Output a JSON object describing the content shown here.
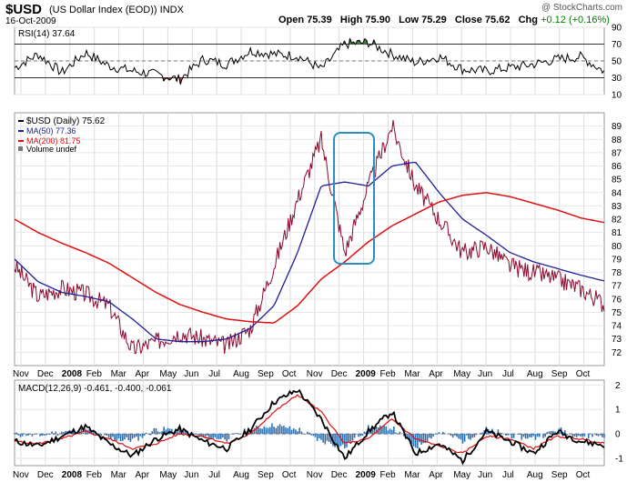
{
  "header": {
    "symbol": "$USD",
    "name": "(US Dollar Index (EOD))",
    "exchange": "INDX",
    "date": "16-Oct-2009",
    "copyright": "@ StockCharts.com",
    "open_label": "Open",
    "open": "75.39",
    "high_label": "High",
    "high": "75.90",
    "low_label": "Low",
    "low": "75.29",
    "close_label": "Close",
    "close": "75.62",
    "chg_label": "Chg",
    "chg": "+0.12 (+0.16%)"
  },
  "colors": {
    "price": "#8b0a2e",
    "ma50": "#1f1f9a",
    "ma200": "#e01010",
    "rsi_line": "#000000",
    "rsi_fill": "#3c7a3c",
    "macd_line": "#000000",
    "signal_line": "#e01010",
    "histogram": "#2e6fb0",
    "highlight": "#2a8fc0"
  },
  "chart_data": [
    {
      "type": "line",
      "panel": "rsi",
      "title": "RSI(14) 37.64",
      "ylim": [
        10,
        90
      ],
      "y_ticks": [
        "90",
        "70",
        "50",
        "30",
        "10"
      ],
      "reference_levels": [
        70,
        50,
        30
      ],
      "x": [
        0,
        10,
        20,
        30,
        40,
        50,
        60,
        70,
        80,
        90,
        100,
        110,
        120,
        130,
        140,
        150,
        160,
        170,
        180,
        190,
        200,
        210,
        220,
        230,
        240,
        250
      ],
      "series": [
        {
          "name": "RSI(14)",
          "values": [
            42,
            58,
            36,
            60,
            44,
            38,
            34,
            28,
            52,
            46,
            62,
            58,
            56,
            40,
            70,
            72,
            58,
            48,
            55,
            40,
            38,
            42,
            46,
            52,
            55,
            37.64
          ]
        }
      ]
    },
    {
      "type": "line",
      "panel": "price",
      "legend": [
        "$USD (Daily) 75.62",
        "MA(50) 77.36",
        "MA(200) 81.75",
        "Volume undef"
      ],
      "ylim": [
        71,
        90
      ],
      "y_ticks": [
        "89",
        "88",
        "87",
        "86",
        "85",
        "84",
        "83",
        "82",
        "81",
        "80",
        "79",
        "78",
        "77",
        "76",
        "75",
        "74",
        "73",
        "72"
      ],
      "x_ticks": [
        "Nov",
        "Dec",
        "2008",
        "Feb",
        "Mar",
        "Apr",
        "May",
        "Jun",
        "Jul",
        "Aug",
        "Sep",
        "Oct",
        "Nov",
        "Dec",
        "2009",
        "Feb",
        "Mar",
        "Apr",
        "May",
        "Jun",
        "Jul",
        "Aug",
        "Sep",
        "Oct"
      ],
      "x": [
        0,
        10,
        20,
        30,
        40,
        50,
        60,
        70,
        80,
        90,
        100,
        110,
        120,
        130,
        140,
        150,
        160,
        170,
        180,
        190,
        200,
        210,
        220,
        230,
        240,
        250
      ],
      "series": [
        {
          "name": "$USD (Daily)",
          "values": [
            78.5,
            76.2,
            76.8,
            76.4,
            75.5,
            72.2,
            72.8,
            73.5,
            73.0,
            72.5,
            73.8,
            78.5,
            83.5,
            88.0,
            79.5,
            84.5,
            89.0,
            84.5,
            82.0,
            79.5,
            80.0,
            78.5,
            78.0,
            77.5,
            76.8,
            75.62
          ]
        },
        {
          "name": "MA(50)",
          "values": [
            79.0,
            77.3,
            76.5,
            76.2,
            75.8,
            74.5,
            73.0,
            72.8,
            72.8,
            73.0,
            73.8,
            75.5,
            79.5,
            84.5,
            84.8,
            84.5,
            86.0,
            86.3,
            84.0,
            82.0,
            80.8,
            79.5,
            78.8,
            78.3,
            77.8,
            77.36
          ]
        },
        {
          "name": "MA(200)",
          "values": [
            82.0,
            81.0,
            80.2,
            79.5,
            78.7,
            77.6,
            76.5,
            75.6,
            75.0,
            74.5,
            74.3,
            74.2,
            75.5,
            77.5,
            78.8,
            80.3,
            81.5,
            82.4,
            83.3,
            83.8,
            84.0,
            83.7,
            83.2,
            82.7,
            82.1,
            81.75
          ]
        }
      ],
      "annotation": "highlight box around the Nov 2008 - Jan 2009 peak and drop"
    },
    {
      "type": "line",
      "panel": "macd",
      "title": "MACD(12,26,9) -0.461, -0.400, -0.061",
      "ylim": [
        -1.3,
        2.2
      ],
      "y_ticks": [
        "2",
        "1",
        "0",
        "-1"
      ],
      "x": [
        0,
        10,
        20,
        30,
        40,
        50,
        60,
        70,
        80,
        90,
        100,
        110,
        120,
        130,
        140,
        150,
        160,
        170,
        180,
        190,
        200,
        210,
        220,
        230,
        240,
        250
      ],
      "series": [
        {
          "name": "MACD",
          "values": [
            -0.3,
            -0.5,
            -0.1,
            0.3,
            -0.4,
            -0.9,
            -0.2,
            0.2,
            -0.3,
            -0.6,
            0.2,
            1.3,
            1.8,
            0.6,
            -1.0,
            0.1,
            0.9,
            -0.8,
            -0.4,
            -1.1,
            0.1,
            -0.3,
            -0.8,
            0.1,
            -0.3,
            -0.461
          ]
        },
        {
          "name": "Signal",
          "values": [
            -0.3,
            -0.4,
            -0.2,
            0.1,
            -0.2,
            -0.6,
            -0.4,
            0.0,
            -0.1,
            -0.4,
            0.0,
            0.9,
            1.6,
            0.9,
            -0.4,
            -0.2,
            0.6,
            -0.2,
            -0.5,
            -0.8,
            -0.1,
            -0.2,
            -0.6,
            -0.1,
            -0.2,
            -0.4
          ]
        }
      ],
      "histogram_name": "Histogram"
    }
  ],
  "macd_x_ticks": [
    "Nov",
    "Dec",
    "2008",
    "Feb",
    "Mar",
    "Apr",
    "May",
    "Jun",
    "Jul",
    "Aug",
    "Sep",
    "Oct",
    "Nov",
    "Dec",
    "2009",
    "Feb",
    "Mar",
    "Apr",
    "May",
    "Jun",
    "Jul",
    "Aug",
    "Sep",
    "Oct"
  ]
}
